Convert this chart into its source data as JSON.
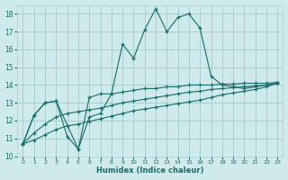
{
  "xlabel": "Humidex (Indice chaleur)",
  "bg_color": "#ceeaea",
  "grid_color": "#aacece",
  "line_color": "#1a6b6b",
  "xlim": [
    -0.5,
    23.5
  ],
  "ylim": [
    10,
    18.5
  ],
  "yticks": [
    10,
    11,
    12,
    13,
    14,
    15,
    16,
    17,
    18
  ],
  "xticks": [
    0,
    1,
    2,
    3,
    4,
    5,
    6,
    7,
    8,
    9,
    10,
    11,
    12,
    13,
    14,
    15,
    16,
    17,
    18,
    19,
    20,
    21,
    22,
    23
  ],
  "line1_x": [
    0,
    1,
    2,
    3,
    4,
    5,
    6,
    7,
    8,
    9,
    10,
    11,
    12,
    13,
    14,
    15,
    16,
    17,
    18,
    19,
    20,
    21,
    22,
    23
  ],
  "line1_y": [
    10.7,
    12.3,
    13.0,
    13.1,
    11.1,
    10.4,
    12.2,
    12.4,
    13.5,
    16.3,
    15.5,
    17.1,
    18.3,
    17.0,
    17.8,
    18.0,
    17.2,
    14.5,
    14.0,
    13.9,
    13.8,
    13.9,
    14.0,
    14.1
  ],
  "line2_x": [
    0,
    1,
    2,
    3,
    5,
    6,
    7,
    8,
    9,
    10,
    11,
    12,
    13,
    14,
    15,
    16,
    17,
    18,
    19,
    20,
    21,
    22,
    23
  ],
  "line2_y": [
    10.7,
    12.3,
    13.0,
    13.1,
    10.4,
    13.3,
    13.5,
    13.5,
    13.6,
    13.7,
    13.8,
    13.8,
    13.9,
    13.9,
    14.0,
    14.0,
    14.0,
    14.05,
    14.05,
    14.1,
    14.1,
    14.1,
    14.15
  ],
  "line3_x": [
    0,
    1,
    2,
    3,
    4,
    5,
    6,
    7,
    8,
    9,
    10,
    11,
    12,
    13,
    14,
    15,
    16,
    17,
    18,
    19,
    20,
    21,
    22,
    23
  ],
  "line3_y": [
    10.7,
    11.3,
    11.8,
    12.2,
    12.4,
    12.5,
    12.6,
    12.7,
    12.85,
    13.0,
    13.1,
    13.2,
    13.3,
    13.4,
    13.5,
    13.6,
    13.65,
    13.75,
    13.8,
    13.85,
    13.9,
    13.95,
    14.0,
    14.1
  ],
  "line4_x": [
    0,
    1,
    2,
    3,
    4,
    5,
    6,
    7,
    8,
    9,
    10,
    11,
    12,
    13,
    14,
    15,
    16,
    17,
    18,
    19,
    20,
    21,
    22,
    23
  ],
  "line4_y": [
    10.7,
    10.9,
    11.2,
    11.5,
    11.7,
    11.8,
    11.95,
    12.1,
    12.25,
    12.4,
    12.55,
    12.65,
    12.75,
    12.85,
    12.95,
    13.05,
    13.15,
    13.3,
    13.45,
    13.55,
    13.65,
    13.75,
    13.9,
    14.1
  ]
}
